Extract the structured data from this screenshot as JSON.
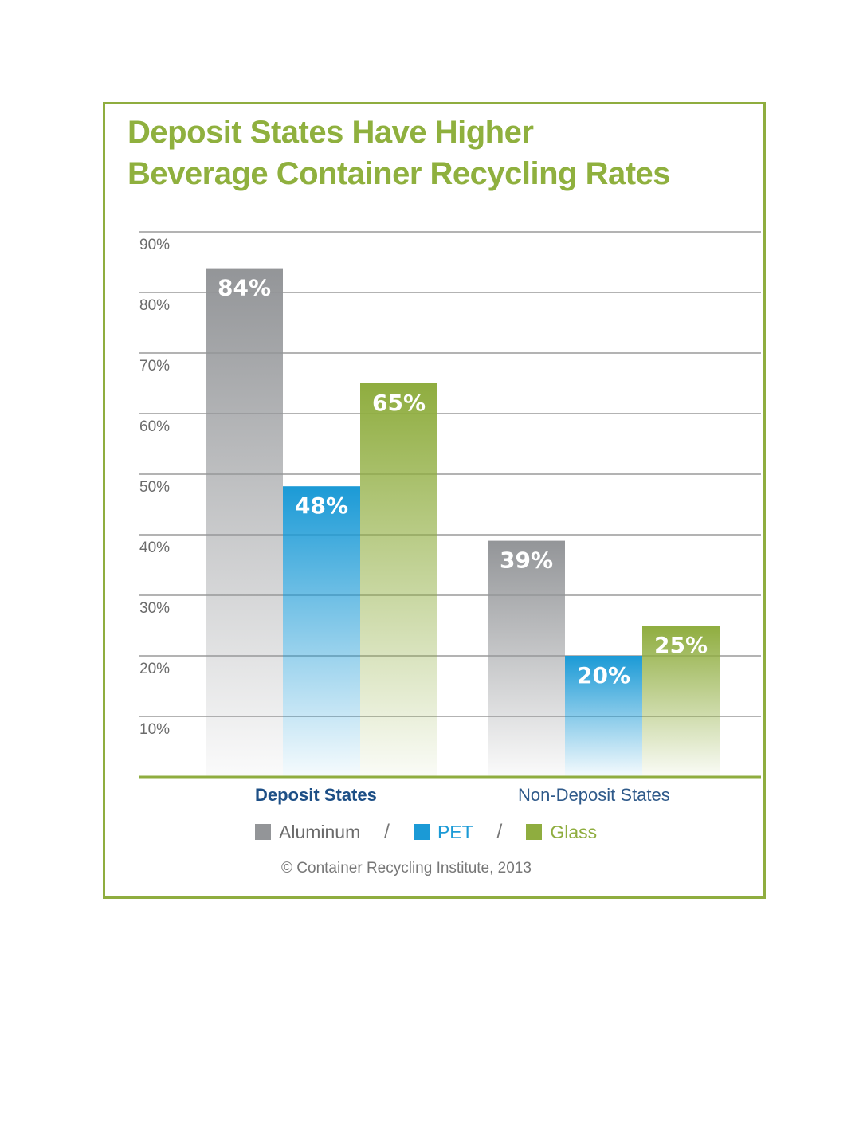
{
  "chart_data": {
    "type": "bar",
    "title": "Deposit States Have Higher Beverage Container Recycling Rates",
    "title_lines": [
      "Deposit States Have Higher",
      "Beverage Container Recycling Rates"
    ],
    "categories": [
      "Deposit States",
      "Non-Deposit States"
    ],
    "series": [
      {
        "name": "Aluminum",
        "color": "#939598",
        "values": [
          84,
          39
        ]
      },
      {
        "name": "PET",
        "color": "#1b9ad6",
        "values": [
          48,
          20
        ]
      },
      {
        "name": "Glass",
        "color": "#8fad3f",
        "values": [
          65,
          25
        ]
      }
    ],
    "data_labels": [
      [
        "84%",
        "39%"
      ],
      [
        "48%",
        "20%"
      ],
      [
        "65%",
        "25%"
      ]
    ],
    "yticks": [
      10,
      20,
      30,
      40,
      50,
      60,
      70,
      80,
      90
    ],
    "ytick_labels": [
      "10%",
      "20%",
      "30%",
      "40%",
      "50%",
      "60%",
      "70%",
      "80%",
      "90%"
    ],
    "ylim": [
      0,
      90
    ],
    "xlabel": "",
    "ylabel": "",
    "grid": true,
    "legend": [
      "Aluminum",
      "PET",
      "Glass"
    ],
    "legend_position": "bottom",
    "annotation": "© Container Recycling Institute, 2013"
  },
  "colors": {
    "frame": "#8fad3f",
    "title": "#8fb03e",
    "baseline": "#8fad3f",
    "deposit_label": "#1d4f86",
    "nondeposit_label": "#2f5a8a"
  },
  "legend_separator": "/"
}
